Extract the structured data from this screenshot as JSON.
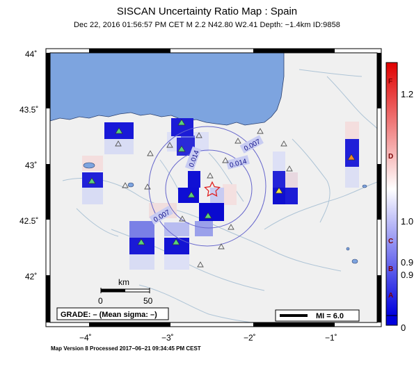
{
  "header": {
    "title": "SISCAN Uncertainty Ratio Map : Spain",
    "subtitle": "Dec 22, 2016 01:56:57 PM CET   M 2.2   N42.80 W2.41   Depth: −1.4km   ID:9858"
  },
  "footer": {
    "text": "Map Version 8 Processed 2017−06−21 09:34:45 PM CEST"
  },
  "axes": {
    "lon_labels": [
      "−4˚",
      "−3˚",
      "−2˚",
      "−1˚"
    ],
    "lat_labels": [
      "44˚",
      "43.5˚",
      "43˚",
      "42.5˚",
      "42˚"
    ]
  },
  "scale_bar": {
    "unit": "km",
    "tick_0": "0",
    "tick_50": "50"
  },
  "grade_box": {
    "text": "GRADE: – (Mean sigma: –)"
  },
  "mi_box": {
    "text": "MI = 6.0"
  },
  "colorbar": {
    "value_labels": [
      "1.2",
      "1.0",
      "0.9",
      "0.9",
      "0"
    ],
    "grade_labels": [
      "F",
      "D",
      "C",
      "B",
      "A"
    ],
    "colors": {
      "top": "#e00000",
      "mid": "#ffffff",
      "bottom": "#0000dd"
    }
  },
  "contours": {
    "labels": [
      "0.014",
      "0.007",
      "0.014",
      "0.007"
    ]
  },
  "map": {
    "event_lat": 42.8,
    "event_lon": -2.41,
    "colors": {
      "sea": "#7da4df",
      "land": "#f0f0f0",
      "river": "#aec4d6",
      "contour": "#6666cc",
      "epicenter": "#e02020",
      "station_green": "#5ad27a",
      "station_yellow": "#f4e542",
      "station_orange": "#f08a24"
    }
  }
}
